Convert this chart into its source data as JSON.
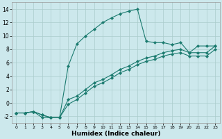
{
  "xlabel": "Humidex (Indice chaleur)",
  "bg_color": "#cce8ec",
  "grid_color": "#aacccc",
  "line_color": "#1a7a6e",
  "xlim": [
    -0.5,
    23.5
  ],
  "ylim": [
    -3,
    15
  ],
  "xticks": [
    0,
    1,
    2,
    3,
    4,
    5,
    6,
    7,
    8,
    9,
    10,
    11,
    12,
    13,
    14,
    15,
    16,
    17,
    18,
    19,
    20,
    21,
    22,
    23
  ],
  "yticks": [
    -2,
    0,
    2,
    4,
    6,
    8,
    10,
    12,
    14
  ],
  "curve1_x": [
    0,
    1,
    2,
    3,
    4,
    5,
    6,
    7,
    8,
    9,
    10,
    11,
    12,
    13,
    14,
    15,
    16,
    17,
    18,
    19,
    20,
    21,
    22,
    23
  ],
  "curve1_y": [
    -1.5,
    -1.5,
    -1.3,
    -2.2,
    -2.2,
    -2.2,
    5.5,
    8.8,
    10.0,
    11.0,
    12.0,
    12.7,
    13.3,
    13.7,
    14.0,
    9.2,
    9.0,
    9.0,
    8.7,
    9.0,
    7.5,
    8.5,
    8.5,
    8.5
  ],
  "curve2_x": [
    0,
    1,
    2,
    3,
    4,
    5,
    6,
    7,
    8,
    9,
    10,
    11,
    12,
    13,
    14,
    15,
    16,
    17,
    18,
    19,
    20,
    21,
    22,
    23
  ],
  "curve2_y": [
    -1.5,
    -1.5,
    -1.3,
    -1.8,
    -2.2,
    -2.2,
    0.5,
    1.0,
    2.0,
    3.0,
    3.5,
    4.2,
    5.0,
    5.5,
    6.2,
    6.7,
    7.0,
    7.5,
    7.8,
    8.0,
    7.5,
    7.5,
    7.5,
    8.5
  ],
  "curve3_x": [
    0,
    1,
    2,
    3,
    4,
    5,
    6,
    7,
    8,
    9,
    10,
    11,
    12,
    13,
    14,
    15,
    16,
    17,
    18,
    19,
    20,
    21,
    22,
    23
  ],
  "curve3_y": [
    -1.5,
    -1.5,
    -1.3,
    -1.8,
    -2.2,
    -2.2,
    -0.2,
    0.5,
    1.5,
    2.5,
    3.0,
    3.7,
    4.5,
    5.0,
    5.7,
    6.2,
    6.5,
    7.0,
    7.3,
    7.5,
    7.0,
    7.0,
    7.0,
    8.0
  ]
}
